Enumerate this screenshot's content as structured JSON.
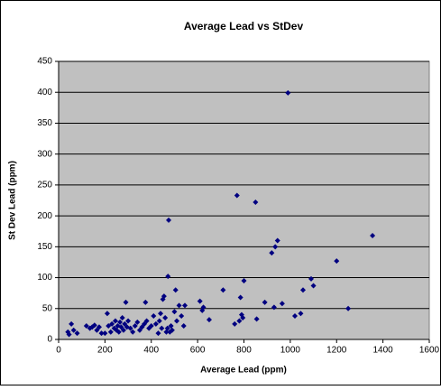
{
  "chart_data": {
    "type": "scatter",
    "title": "Average Lead vs StDev",
    "x_label": "Average Lead (ppm)",
    "y_label": "St Dev Lead (ppm)",
    "color": "#000080",
    "plot_background": "#c0c0c0",
    "xlim": [
      0,
      1600
    ],
    "xticks": [
      0,
      200,
      400,
      600,
      800,
      1000,
      1200,
      1400,
      1600
    ],
    "ylim": [
      0,
      450
    ],
    "yticks": [
      0,
      50,
      100,
      150,
      200,
      250,
      300,
      350,
      400,
      450
    ],
    "grid": true,
    "x": [
      40,
      45,
      55,
      65,
      80,
      120,
      135,
      145,
      155,
      165,
      175,
      185,
      200,
      210,
      215,
      225,
      230,
      240,
      245,
      250,
      255,
      260,
      265,
      270,
      275,
      280,
      285,
      290,
      295,
      300,
      310,
      320,
      330,
      340,
      350,
      360,
      370,
      375,
      380,
      390,
      400,
      410,
      420,
      430,
      435,
      440,
      445,
      450,
      455,
      460,
      465,
      470,
      472,
      475,
      480,
      485,
      490,
      500,
      505,
      510,
      520,
      530,
      540,
      545,
      610,
      620,
      625,
      650,
      710,
      760,
      770,
      780,
      785,
      790,
      795,
      800,
      850,
      855,
      890,
      920,
      930,
      935,
      945,
      965,
      990,
      1020,
      1045,
      1055,
      1090,
      1100,
      1200,
      1250,
      1355
    ],
    "values": [
      12,
      8,
      25,
      15,
      10,
      22,
      18,
      20,
      23,
      15,
      20,
      10,
      10,
      42,
      22,
      12,
      25,
      18,
      30,
      15,
      22,
      12,
      28,
      20,
      35,
      15,
      25,
      60,
      20,
      30,
      18,
      12,
      22,
      28,
      15,
      20,
      25,
      60,
      30,
      18,
      22,
      38,
      25,
      10,
      30,
      42,
      18,
      65,
      70,
      35,
      12,
      18,
      102,
      193,
      12,
      22,
      15,
      45,
      80,
      30,
      55,
      38,
      22,
      55,
      62,
      47,
      52,
      32,
      80,
      25,
      233,
      30,
      68,
      40,
      35,
      95,
      222,
      33,
      60,
      140,
      52,
      150,
      160,
      58,
      399,
      38,
      42,
      80,
      98,
      87,
      127,
      50,
      168
    ]
  }
}
